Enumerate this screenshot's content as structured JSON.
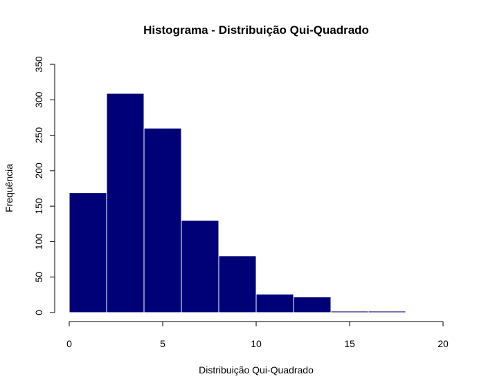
{
  "chart_data": {
    "type": "bar",
    "title": "Histograma - Distribuição Qui-Quadrado",
    "xlabel": "Distribuição Qui-Quadrado",
    "ylabel": "Frequência",
    "bins": [
      {
        "from": 0,
        "to": 2,
        "count": 169
      },
      {
        "from": 2,
        "to": 4,
        "count": 309
      },
      {
        "from": 4,
        "to": 6,
        "count": 260
      },
      {
        "from": 6,
        "to": 8,
        "count": 130
      },
      {
        "from": 8,
        "to": 10,
        "count": 80
      },
      {
        "from": 10,
        "to": 12,
        "count": 26
      },
      {
        "from": 12,
        "to": 14,
        "count": 22
      },
      {
        "from": 14,
        "to": 16,
        "count": 2
      },
      {
        "from": 16,
        "to": 18,
        "count": 2
      }
    ],
    "xlim": [
      0,
      20
    ],
    "ylim": [
      0,
      350
    ],
    "xticks": [
      "0",
      "5",
      "10",
      "15",
      "20"
    ],
    "yticks": [
      "0",
      "50",
      "100",
      "150",
      "200",
      "250",
      "300",
      "350"
    ],
    "bar_color": "#000077",
    "bar_border_color": "#ffffff",
    "grid": false,
    "legend": "none"
  }
}
